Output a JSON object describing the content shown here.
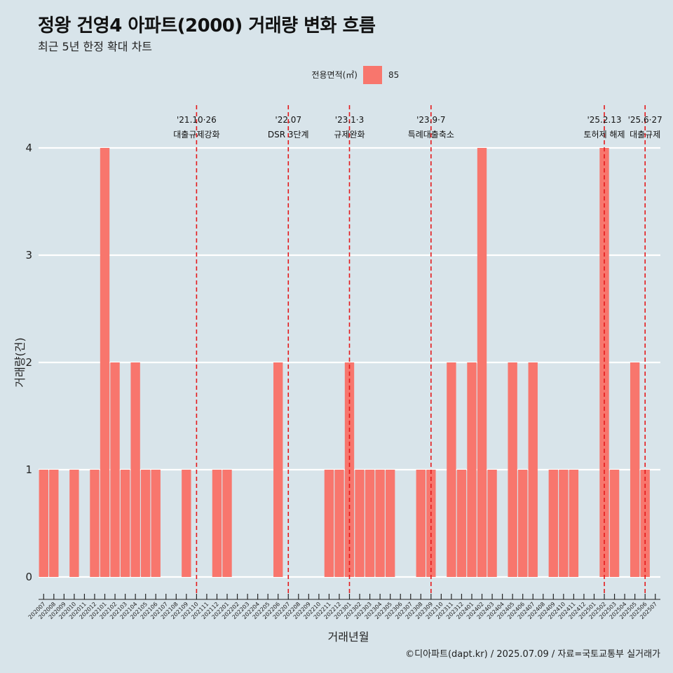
{
  "header": {
    "title": "정왕 건영4 아파트(2000) 거래량 변화 흐름",
    "subtitle": "최근 5년 한정 확대 차트"
  },
  "caption": "©디아파트(dapt.kr) / 2025.07.09 / 자료=국토교통부 실거래가",
  "colors": {
    "background": "#d8e4ea",
    "bar": "#f8766d",
    "event_line": "#e41a1c",
    "grid": "#ffffff"
  },
  "chart_data": {
    "type": "bar",
    "xlabel": "거래년월",
    "ylabel": "거래량(건)",
    "ylim": [
      0,
      4
    ],
    "yticks": [
      0,
      1,
      2,
      3,
      4
    ],
    "grid": true,
    "legend": {
      "title": "전용면적(㎡)",
      "position": "top"
    },
    "categories": [
      "202007",
      "202008",
      "202009",
      "202010",
      "202011",
      "202012",
      "202101",
      "202102",
      "202103",
      "202104",
      "202105",
      "202106",
      "202107",
      "202108",
      "202109",
      "202110",
      "202111",
      "202112",
      "202201",
      "202202",
      "202203",
      "202204",
      "202205",
      "202206",
      "202207",
      "202208",
      "202209",
      "202210",
      "202211",
      "202212",
      "202301",
      "202302",
      "202303",
      "202304",
      "202305",
      "202306",
      "202307",
      "202308",
      "202309",
      "202310",
      "202311",
      "202312",
      "202401",
      "202402",
      "202403",
      "202404",
      "202405",
      "202406",
      "202407",
      "202408",
      "202409",
      "202410",
      "202411",
      "202412",
      "202501",
      "202502",
      "202503",
      "202504",
      "202505",
      "202506",
      "202507"
    ],
    "series": [
      {
        "name": "85",
        "values": [
          1,
          1,
          0,
          1,
          0,
          1,
          4,
          2,
          1,
          2,
          1,
          1,
          0,
          0,
          1,
          0,
          0,
          1,
          1,
          0,
          0,
          0,
          0,
          2,
          0,
          0,
          0,
          0,
          1,
          1,
          2,
          1,
          1,
          1,
          1,
          0,
          0,
          1,
          1,
          0,
          2,
          1,
          2,
          4,
          1,
          0,
          2,
          1,
          2,
          0,
          1,
          1,
          1,
          0,
          0,
          4,
          1,
          0,
          2,
          1,
          0
        ]
      }
    ],
    "events": [
      {
        "x": "202110",
        "date": "'21.10·26",
        "label": "대출규제강화"
      },
      {
        "x": "202207",
        "date": "'22.07",
        "label": "DSR 3단계"
      },
      {
        "x": "202301",
        "date": "'23.1·3",
        "label": "규제완화"
      },
      {
        "x": "202309",
        "date": "'23.9·7",
        "label": "특례대출축소"
      },
      {
        "x": "202502",
        "date": "'25.2.13",
        "label": "토허제 해제"
      },
      {
        "x": "202506",
        "date": "'25.6·27",
        "label": "대출규제"
      }
    ]
  }
}
